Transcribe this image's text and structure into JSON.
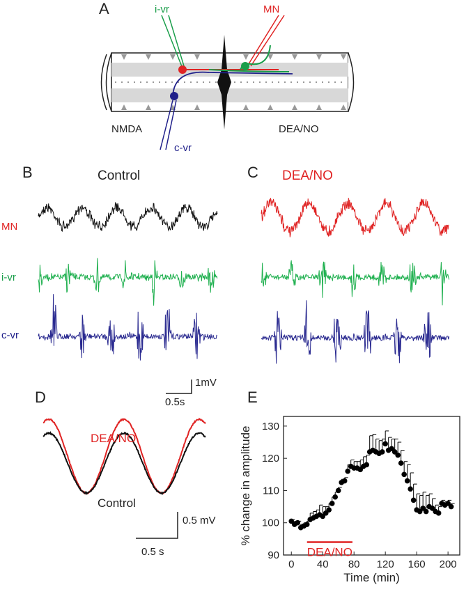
{
  "panel_a": {
    "label": "A",
    "i_vr": "i-vr",
    "mn": "MN",
    "nmda": "NMDA",
    "dea_no": "DEA/NO",
    "c_vr": "c-vr"
  },
  "panel_b": {
    "label": "B",
    "title": "Control",
    "rows": [
      "MN",
      "i-vr",
      "c-vr"
    ],
    "scale_y": "1mV",
    "scale_x": "0.5s"
  },
  "panel_c": {
    "label": "C",
    "title": "DEA/NO"
  },
  "panel_d": {
    "label": "D",
    "trace_labels": [
      "DEA/NO",
      "Control"
    ],
    "scale_y": "0.5 mV",
    "scale_x": "0.5 s"
  },
  "panel_e_label": "E",
  "chart_data": {
    "type": "scatter",
    "x_label": "Time (min)",
    "y_label": "% change in amplitude",
    "x": [
      0,
      4,
      8,
      12,
      16,
      20,
      24,
      28,
      32,
      36,
      40,
      44,
      48,
      52,
      56,
      60,
      64,
      68,
      72,
      76,
      80,
      84,
      88,
      92,
      96,
      100,
      104,
      108,
      112,
      116,
      120,
      124,
      128,
      132,
      136,
      140,
      144,
      148,
      152,
      156,
      160,
      164,
      168,
      172,
      176,
      180,
      184,
      188,
      192,
      196,
      200,
      204
    ],
    "values": [
      100.5,
      99.5,
      100,
      98.5,
      99,
      99.5,
      101,
      101.5,
      102,
      102.5,
      102,
      103,
      104,
      106,
      108,
      110,
      112.5,
      113,
      116,
      117.5,
      117,
      117,
      116.5,
      117.5,
      118,
      122,
      122.5,
      122,
      121.5,
      122,
      124.5,
      122.5,
      123,
      122,
      121,
      118.5,
      115,
      113,
      110.5,
      107,
      104,
      103.5,
      104.5,
      103.5,
      105,
      104.5,
      103.5,
      103,
      106,
      105.5,
      106,
      105
    ],
    "errors": [
      0.5,
      1,
      0.5,
      1,
      1,
      1,
      2,
      2,
      2,
      3,
      3,
      2,
      2,
      2,
      1.5,
      1,
      1,
      1,
      2,
      2,
      2,
      2,
      3,
      3,
      3,
      5,
      5,
      4,
      4,
      4,
      4,
      4,
      3,
      4,
      4,
      4,
      4,
      5,
      5,
      5,
      5,
      5,
      5,
      5,
      4,
      3,
      2,
      2,
      1,
      1,
      1,
      1
    ],
    "color": "#000000",
    "annotation": {
      "text": "DEA/NO",
      "x": [
        20,
        78
      ],
      "color": "#e02424"
    },
    "xlim": [
      -10,
      215
    ],
    "ylim": [
      90,
      133
    ],
    "xticks": [
      0,
      40,
      80,
      120,
      160,
      200
    ],
    "yticks": [
      90,
      100,
      110,
      120,
      130
    ]
  }
}
